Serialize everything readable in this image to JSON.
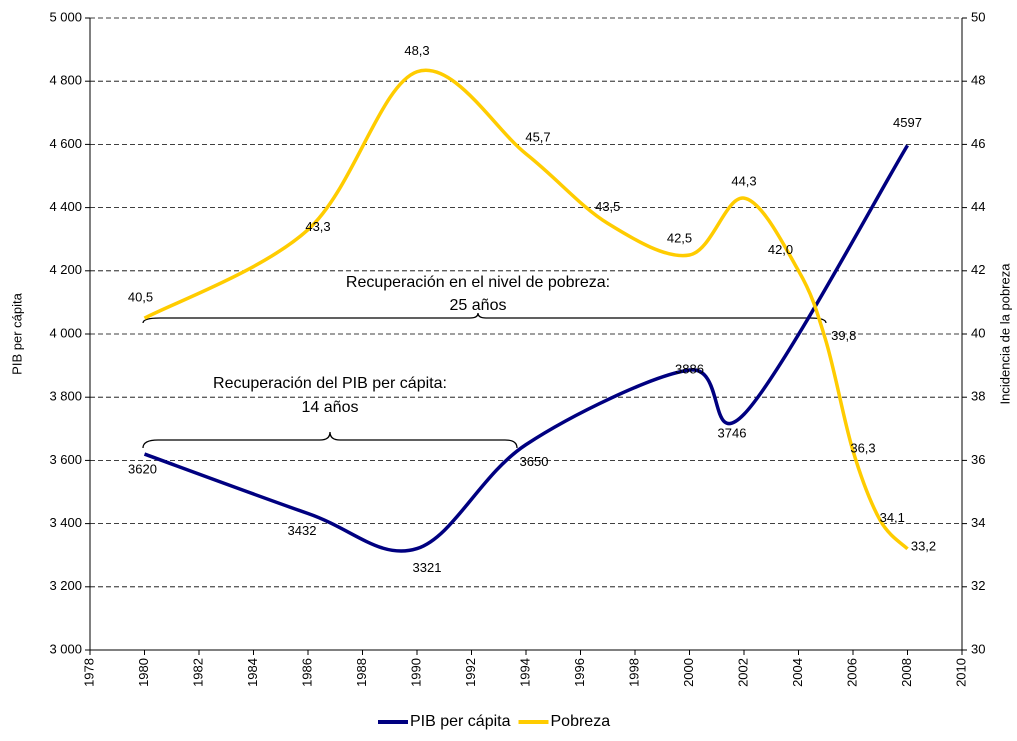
{
  "chart_data": {
    "type": "line",
    "x_label": null,
    "y_label": "PIB per cápita",
    "y2_label": "Incidencia de la pobreza",
    "xlim": [
      1978,
      2010
    ],
    "xticks": [
      1978,
      1980,
      1982,
      1984,
      1986,
      1988,
      1990,
      1992,
      1994,
      1996,
      1998,
      2000,
      2002,
      2004,
      2006,
      2008,
      2010
    ],
    "ylim": [
      3000,
      5000
    ],
    "yticks": [
      {
        "value": 3000,
        "label": "3 000"
      },
      {
        "value": 3200,
        "label": "3 200"
      },
      {
        "value": 3400,
        "label": "3 400"
      },
      {
        "value": 3600,
        "label": "3 600"
      },
      {
        "value": 3800,
        "label": "3 800"
      },
      {
        "value": 4000,
        "label": "4 000"
      },
      {
        "value": 4200,
        "label": "4 200"
      },
      {
        "value": 4400,
        "label": "4 400"
      },
      {
        "value": 4600,
        "label": "4 600"
      },
      {
        "value": 4800,
        "label": "4 800"
      },
      {
        "value": 5000,
        "label": "5 000"
      }
    ],
    "y2lim": [
      30,
      50
    ],
    "y2ticks": [
      30,
      32,
      34,
      36,
      38,
      40,
      42,
      44,
      46,
      48,
      50
    ],
    "grid": true,
    "legend": "bottom",
    "annotations": [
      "Recuperación en el nivel de pobreza:",
      "25 años",
      "Recuperación del PIB per cápita:",
      "14 años"
    ],
    "series": [
      {
        "name": "PIB per cápita",
        "color": "#000080",
        "x": [
          1980,
          1986,
          1990,
          1994,
          2000,
          2002,
          2008
        ],
        "values": [
          3620,
          3432,
          3321,
          3650,
          3886,
          3746,
          4597
        ]
      },
      {
        "name": "Pobreza",
        "color": "#ffcc00",
        "axis": "y2",
        "x": [
          1980,
          1986,
          1990,
          1994,
          1997,
          2000,
          2002,
          2004,
          2005,
          2006,
          2007,
          2008
        ],
        "values": [
          40.5,
          43.3,
          48.3,
          45.7,
          43.5,
          42.5,
          44.3,
          42.0,
          39.8,
          36.3,
          34.1,
          33.2
        ],
        "value_labels": [
          "40,5",
          "43,3",
          "48,3",
          "45,7",
          "43,5",
          "42,5",
          "44,3",
          "42,0",
          "39,8",
          "36,3",
          "34,1",
          "33,2"
        ]
      }
    ]
  }
}
